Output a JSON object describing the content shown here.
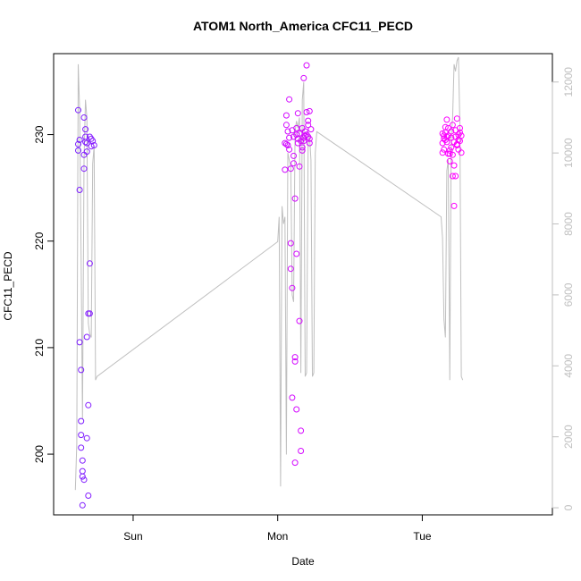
{
  "chart_data": {
    "type": "scatter",
    "title": "ATOM1 North_America CFC11_PECD",
    "xlabel": "Date",
    "ylabel": "CFC11_PECD",
    "x_ticks": [
      "Sun",
      "Mon",
      "Tue"
    ],
    "x_tick_times": [
      0.5,
      1.5,
      2.5
    ],
    "xlim": [
      -0.05,
      3.4
    ],
    "ylim": [
      194.3,
      237.6
    ],
    "y_ticks": [
      200,
      210,
      220,
      230
    ],
    "y2lim": [
      -200,
      12800
    ],
    "y2_ticks": [
      0,
      2000,
      4000,
      6000,
      8000,
      10000,
      12000
    ],
    "grid": false,
    "colors": {
      "axis": "#000000",
      "line": "#bfbfbf",
      "secondary_axis": "#bfbfbf",
      "points_start": "#7a1fff",
      "points_end": "#ff00ff"
    },
    "series": [
      {
        "style": "points",
        "axis": "left",
        "x": [
          0.12,
          0.12,
          0.12,
          0.13,
          0.13,
          0.13,
          0.14,
          0.14,
          0.14,
          0.14,
          0.15,
          0.15,
          0.15,
          0.15,
          0.16,
          0.16,
          0.16,
          0.16,
          0.17,
          0.17,
          0.17,
          0.18,
          0.18,
          0.18,
          0.18,
          0.19,
          0.19,
          0.19,
          0.2,
          0.2,
          0.2,
          0.21,
          0.21,
          0.22,
          0.23,
          1.55,
          1.55,
          1.56,
          1.56,
          1.56,
          1.57,
          1.57,
          1.58,
          1.58,
          1.58,
          1.59,
          1.59,
          1.59,
          1.6,
          1.6,
          1.6,
          1.61,
          1.61,
          1.61,
          1.62,
          1.62,
          1.62,
          1.62,
          1.63,
          1.63,
          1.63,
          1.63,
          1.64,
          1.64,
          1.64,
          1.65,
          1.65,
          1.65,
          1.66,
          1.66,
          1.66,
          1.67,
          1.67,
          1.67,
          1.68,
          1.68,
          1.68,
          1.69,
          1.69,
          1.69,
          1.7,
          1.7,
          1.7,
          1.71,
          1.71,
          1.71,
          1.72,
          1.72,
          1.72,
          1.73,
          2.64,
          2.64,
          2.64,
          2.65,
          2.65,
          2.65,
          2.66,
          2.66,
          2.66,
          2.67,
          2.67,
          2.67,
          2.68,
          2.68,
          2.68,
          2.69,
          2.69,
          2.69,
          2.7,
          2.7,
          2.7,
          2.71,
          2.71,
          2.71,
          2.72,
          2.72,
          2.72,
          2.73,
          2.73,
          2.73,
          2.74,
          2.74,
          2.74,
          2.75,
          2.75,
          2.75,
          2.76,
          2.76,
          2.76,
          2.77,
          2.77
        ],
        "y": [
          228.5,
          229.1,
          232.3,
          229.5,
          224.8,
          210.5,
          207.9,
          203.1,
          201.8,
          200.6,
          198.4,
          199.4,
          197.9,
          195.2,
          197.6,
          226.8,
          228.1,
          231.6,
          229.3,
          229.8,
          230.5,
          229.2,
          228.4,
          211.0,
          201.5,
          204.6,
          196.1,
          213.2,
          217.9,
          213.2,
          229.8,
          229.6,
          228.9,
          229.4,
          229.0,
          226.7,
          229.2,
          231.8,
          229.1,
          230.9,
          230.3,
          229.0,
          233.3,
          229.7,
          228.6,
          226.8,
          219.8,
          217.4,
          215.6,
          205.3,
          230.4,
          229.8,
          227.3,
          228.0,
          224.0,
          209.1,
          208.7,
          199.2,
          204.2,
          218.8,
          230.6,
          230.0,
          229.2,
          232.0,
          229.6,
          227.0,
          212.5,
          230.1,
          202.2,
          200.3,
          229.4,
          228.8,
          228.5,
          230.6,
          229.7,
          229.4,
          235.3,
          230.3,
          229.9,
          229.9,
          236.5,
          232.1,
          230.0,
          231.3,
          229.8,
          230.9,
          232.2,
          229.6,
          229.2,
          230.5,
          228.3,
          229.2,
          230.1,
          229.9,
          228.6,
          229.6,
          230.2,
          229.5,
          230.7,
          231.4,
          229.8,
          229.3,
          228.2,
          230.6,
          229.9,
          227.5,
          228.2,
          228.5,
          229.7,
          230.3,
          228.8,
          226.1,
          230.9,
          228.1,
          227.1,
          229.3,
          223.3,
          226.1,
          229.8,
          230.4,
          231.5,
          229.0,
          229.1,
          229.5,
          230.0,
          228.6,
          230.2,
          229.4,
          230.6,
          228.3,
          229.9
        ]
      },
      {
        "style": "line",
        "axis": "right",
        "x": [
          0.1,
          0.11,
          0.12,
          0.13,
          0.14,
          0.15,
          0.16,
          0.17,
          0.18,
          0.19,
          0.2,
          0.21,
          0.22,
          0.23,
          0.24,
          0.25,
          1.5,
          1.51,
          1.52,
          1.53,
          1.54,
          1.55,
          1.56,
          1.57,
          1.58,
          1.59,
          1.6,
          1.61,
          1.62,
          1.63,
          1.64,
          1.65,
          1.66,
          1.67,
          1.68,
          1.69,
          1.7,
          1.71,
          1.72,
          1.73,
          1.74,
          1.75,
          1.76,
          1.77,
          2.63,
          2.64,
          2.65,
          2.66,
          2.67,
          2.68,
          2.69,
          2.7,
          2.71,
          2.72,
          2.73,
          2.74,
          2.75,
          2.76,
          2.77,
          2.78
        ],
        "y": [
          500,
          1800,
          12500,
          11200,
          7200,
          2500,
          9800,
          11500,
          11000,
          5200,
          4900,
          4800,
          9700,
          10200,
          3600,
          3700,
          7500,
          8200,
          600,
          8500,
          8000,
          8200,
          1500,
          10000,
          9800,
          9600,
          6000,
          5800,
          10600,
          10900,
          10700,
          11000,
          3800,
          11500,
          12000,
          3700,
          3800,
          10200,
          10500,
          9800,
          3700,
          3800,
          10000,
          10600,
          8200,
          7600,
          5300,
          4800,
          9500,
          9800,
          3600,
          10500,
          11000,
          12500,
          12300,
          12600,
          12700,
          10800,
          3700,
          3600
        ]
      }
    ]
  }
}
